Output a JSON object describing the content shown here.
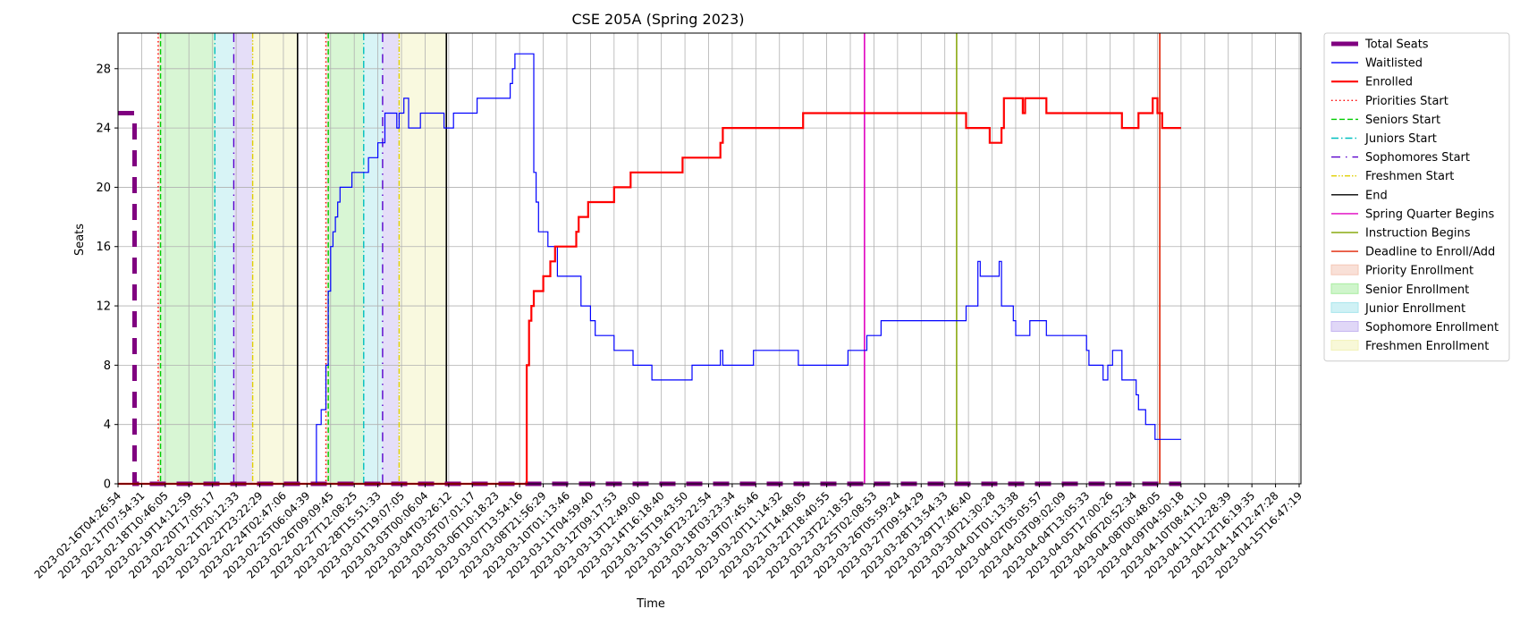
{
  "chart_data": {
    "type": "line",
    "title": "CSE 205A (Spring 2023)",
    "xlabel": "Time",
    "ylabel": "Seats",
    "ylim": [
      0,
      30.4
    ],
    "yticks": [
      0,
      4,
      8,
      12,
      16,
      20,
      24,
      28
    ],
    "grid": true,
    "legend_position": "outside right",
    "x_tick_labels": [
      "2023-02-16T04:26:54",
      "2023-02-17T07:54:31",
      "2023-02-18T10:46:05",
      "2023-02-19T14:12:59",
      "2023-02-20T17:05:17",
      "2023-02-21T20:12:33",
      "2023-02-22T23:22:29",
      "2023-02-24T02:47:06",
      "2023-02-25T06:04:39",
      "2023-02-26T09:09:45",
      "2023-02-27T12:08:25",
      "2023-02-28T15:51:33",
      "2023-03-01T19:07:05",
      "2023-03-03T00:06:04",
      "2023-03-04T03:26:12",
      "2023-03-05T07:01:17",
      "2023-03-06T10:18:23",
      "2023-03-07T13:54:16",
      "2023-03-08T21:56:29",
      "2023-03-10T01:13:46",
      "2023-03-11T04:59:40",
      "2023-03-12T09:17:53",
      "2023-03-13T12:49:00",
      "2023-03-14T16:18:40",
      "2023-03-15T19:43:50",
      "2023-03-16T23:22:54",
      "2023-03-18T03:23:34",
      "2023-03-19T07:45:46",
      "2023-03-20T11:14:32",
      "2023-03-21T14:48:05",
      "2023-03-22T18:40:55",
      "2023-03-23T22:18:52",
      "2023-03-25T02:08:53",
      "2023-03-26T05:59:24",
      "2023-03-27T09:54:29",
      "2023-03-28T13:54:33",
      "2023-03-29T17:46:40",
      "2023-03-30T21:30:28",
      "2023-04-01T01:13:38",
      "2023-04-02T05:05:57",
      "2023-04-03T09:02:09",
      "2023-04-04T13:05:33",
      "2023-04-05T17:00:26",
      "2023-04-06T20:52:34",
      "2023-04-08T00:48:05",
      "2023-04-09T04:50:18",
      "2023-04-10T08:41:10",
      "2023-04-11T12:28:39",
      "2023-04-12T16:19:35",
      "2023-04-14T12:47:28",
      "2023-04-15T16:47:19"
    ],
    "series": [
      {
        "name": "Total Seats",
        "color": "#800080",
        "points": [
          [
            0,
            25
          ],
          [
            0.7,
            25
          ],
          [
            0.7,
            0
          ],
          [
            1,
            0
          ],
          [
            45,
            0
          ]
        ]
      },
      {
        "name": "Waitlisted",
        "color": "#0000ff",
        "points": [
          [
            0,
            0
          ],
          [
            8.4,
            0
          ],
          [
            8.4,
            4
          ],
          [
            8.6,
            4
          ],
          [
            8.6,
            5
          ],
          [
            8.8,
            5
          ],
          [
            8.8,
            8
          ],
          [
            8.9,
            8
          ],
          [
            8.9,
            13
          ],
          [
            9.0,
            13
          ],
          [
            9.0,
            16
          ],
          [
            9.1,
            16
          ],
          [
            9.1,
            17
          ],
          [
            9.2,
            17
          ],
          [
            9.2,
            18
          ],
          [
            9.3,
            18
          ],
          [
            9.3,
            19
          ],
          [
            9.4,
            19
          ],
          [
            9.4,
            20
          ],
          [
            9.9,
            20
          ],
          [
            9.9,
            21
          ],
          [
            10.6,
            21
          ],
          [
            10.6,
            22
          ],
          [
            11.0,
            22
          ],
          [
            11.0,
            23
          ],
          [
            11.3,
            23
          ],
          [
            11.3,
            25
          ],
          [
            11.8,
            25
          ],
          [
            11.8,
            24
          ],
          [
            11.9,
            24
          ],
          [
            11.9,
            25
          ],
          [
            12.1,
            25
          ],
          [
            12.1,
            26
          ],
          [
            12.3,
            26
          ],
          [
            12.3,
            24
          ],
          [
            12.8,
            24
          ],
          [
            12.8,
            25
          ],
          [
            13.8,
            25
          ],
          [
            13.8,
            24
          ],
          [
            14.2,
            24
          ],
          [
            14.2,
            25
          ],
          [
            15.2,
            25
          ],
          [
            15.2,
            26
          ],
          [
            16.6,
            26
          ],
          [
            16.6,
            27
          ],
          [
            16.7,
            27
          ],
          [
            16.7,
            28
          ],
          [
            16.8,
            28
          ],
          [
            16.8,
            29
          ],
          [
            17.6,
            29
          ],
          [
            17.6,
            21
          ],
          [
            17.7,
            21
          ],
          [
            17.7,
            19
          ],
          [
            17.8,
            19
          ],
          [
            17.8,
            17
          ],
          [
            18.2,
            17
          ],
          [
            18.2,
            16
          ],
          [
            18.6,
            16
          ],
          [
            18.6,
            14
          ],
          [
            19.6,
            14
          ],
          [
            19.6,
            12
          ],
          [
            20.0,
            12
          ],
          [
            20.0,
            11
          ],
          [
            20.2,
            11
          ],
          [
            20.2,
            10
          ],
          [
            21.0,
            10
          ],
          [
            21.0,
            9
          ],
          [
            21.8,
            9
          ],
          [
            21.8,
            8
          ],
          [
            22.6,
            8
          ],
          [
            22.6,
            7
          ],
          [
            24.3,
            7
          ],
          [
            24.3,
            8
          ],
          [
            25.5,
            8
          ],
          [
            25.5,
            9
          ],
          [
            25.6,
            9
          ],
          [
            25.6,
            8
          ],
          [
            26.9,
            8
          ],
          [
            26.9,
            9
          ],
          [
            28.8,
            9
          ],
          [
            28.8,
            8
          ],
          [
            30.9,
            8
          ],
          [
            30.9,
            9
          ],
          [
            31.7,
            9
          ],
          [
            31.7,
            10
          ],
          [
            32.3,
            10
          ],
          [
            32.3,
            11
          ],
          [
            35.9,
            11
          ],
          [
            35.9,
            12
          ],
          [
            36.4,
            12
          ],
          [
            36.4,
            15
          ],
          [
            36.5,
            15
          ],
          [
            36.5,
            14
          ],
          [
            37.3,
            14
          ],
          [
            37.3,
            15
          ],
          [
            37.4,
            15
          ],
          [
            37.4,
            12
          ],
          [
            37.9,
            12
          ],
          [
            37.9,
            11
          ],
          [
            38.0,
            11
          ],
          [
            38.0,
            10
          ],
          [
            38.6,
            10
          ],
          [
            38.6,
            11
          ],
          [
            39.3,
            11
          ],
          [
            39.3,
            10
          ],
          [
            41.0,
            10
          ],
          [
            41.0,
            9
          ],
          [
            41.1,
            9
          ],
          [
            41.1,
            8
          ],
          [
            41.7,
            8
          ],
          [
            41.7,
            7
          ],
          [
            41.9,
            7
          ],
          [
            41.9,
            8
          ],
          [
            42.1,
            8
          ],
          [
            42.1,
            9
          ],
          [
            42.5,
            9
          ],
          [
            42.5,
            7
          ],
          [
            43.1,
            7
          ],
          [
            43.1,
            6
          ],
          [
            43.2,
            6
          ],
          [
            43.2,
            5
          ],
          [
            43.5,
            5
          ],
          [
            43.5,
            4
          ],
          [
            43.9,
            4
          ],
          [
            43.9,
            3
          ],
          [
            45,
            3
          ]
        ]
      },
      {
        "name": "Enrolled",
        "color": "#ff0000",
        "points": [
          [
            0,
            0
          ],
          [
            17.3,
            0
          ],
          [
            17.3,
            8
          ],
          [
            17.4,
            8
          ],
          [
            17.4,
            11
          ],
          [
            17.5,
            11
          ],
          [
            17.5,
            12
          ],
          [
            17.6,
            12
          ],
          [
            17.6,
            13
          ],
          [
            18.0,
            13
          ],
          [
            18.0,
            14
          ],
          [
            18.3,
            14
          ],
          [
            18.3,
            15
          ],
          [
            18.5,
            15
          ],
          [
            18.5,
            16
          ],
          [
            19.4,
            16
          ],
          [
            19.4,
            17
          ],
          [
            19.5,
            17
          ],
          [
            19.5,
            18
          ],
          [
            19.9,
            18
          ],
          [
            19.9,
            19
          ],
          [
            21.0,
            19
          ],
          [
            21.0,
            20
          ],
          [
            21.7,
            20
          ],
          [
            21.7,
            21
          ],
          [
            23.9,
            21
          ],
          [
            23.9,
            22
          ],
          [
            25.5,
            22
          ],
          [
            25.5,
            23
          ],
          [
            25.6,
            23
          ],
          [
            25.6,
            24
          ],
          [
            29.0,
            24
          ],
          [
            29.0,
            25
          ],
          [
            35.9,
            25
          ],
          [
            35.9,
            24
          ],
          [
            36.9,
            24
          ],
          [
            36.9,
            23
          ],
          [
            37.4,
            23
          ],
          [
            37.4,
            24
          ],
          [
            37.5,
            24
          ],
          [
            37.5,
            26
          ],
          [
            38.3,
            26
          ],
          [
            38.3,
            25
          ],
          [
            38.4,
            25
          ],
          [
            38.4,
            26
          ],
          [
            39.3,
            26
          ],
          [
            39.3,
            25
          ],
          [
            42.5,
            25
          ],
          [
            42.5,
            24
          ],
          [
            43.2,
            24
          ],
          [
            43.2,
            25
          ],
          [
            43.8,
            25
          ],
          [
            43.8,
            26
          ],
          [
            44.0,
            26
          ],
          [
            44.0,
            25
          ],
          [
            44.2,
            25
          ],
          [
            44.2,
            24
          ],
          [
            45,
            24
          ]
        ]
      }
    ],
    "vertical_lines": [
      {
        "name": "Priorities Start",
        "color": "#ff0000",
        "style": "dotted",
        "x": [
          1.7,
          8.8
        ]
      },
      {
        "name": "Seniors Start",
        "color": "#00cc00",
        "style": "dashed",
        "x": [
          1.8,
          8.9
        ]
      },
      {
        "name": "Juniors Start",
        "color": "#00bfbf",
        "style": "dashdot",
        "x": [
          4.1,
          10.4
        ]
      },
      {
        "name": "Sophomores Start",
        "color": "#5a00cc",
        "style": "loosedashdot",
        "x": [
          4.9,
          11.2
        ]
      },
      {
        "name": "Freshmen Start",
        "color": "#e0d000",
        "style": "dashdotdot",
        "x": [
          5.7,
          11.9
        ]
      },
      {
        "name": "End",
        "color": "#000000",
        "style": "solid",
        "x": [
          7.6,
          13.9
        ]
      },
      {
        "name": "Spring Quarter Begins",
        "color": "#e000c0",
        "style": "solid",
        "x": [
          31.6
        ]
      },
      {
        "name": "Instruction Begins",
        "color": "#8aaa10",
        "style": "solid",
        "x": [
          35.5
        ]
      },
      {
        "name": "Deadline to Enroll/Add",
        "color": "#e02000",
        "style": "solid",
        "x": [
          44.1
        ]
      }
    ],
    "shaded_periods": [
      {
        "name": "Priority Enrollment",
        "color": "#f4c7b6",
        "ranges": [
          [
            1.7,
            1.8
          ],
          [
            8.8,
            8.9
          ]
        ]
      },
      {
        "name": "Senior Enrollment",
        "color": "#a8eca0",
        "ranges": [
          [
            1.8,
            4.1
          ],
          [
            8.9,
            10.4
          ]
        ]
      },
      {
        "name": "Junior Enrollment",
        "color": "#a8e6ec",
        "ranges": [
          [
            4.1,
            4.9
          ],
          [
            10.4,
            11.2
          ]
        ]
      },
      {
        "name": "Sophomore Enrollment",
        "color": "#c6b6f0",
        "ranges": [
          [
            4.9,
            5.7
          ],
          [
            11.2,
            11.9
          ]
        ]
      },
      {
        "name": "Freshmen Enrollment",
        "color": "#f2f2b8",
        "ranges": [
          [
            5.7,
            7.6
          ],
          [
            11.9,
            13.9
          ]
        ]
      }
    ]
  }
}
